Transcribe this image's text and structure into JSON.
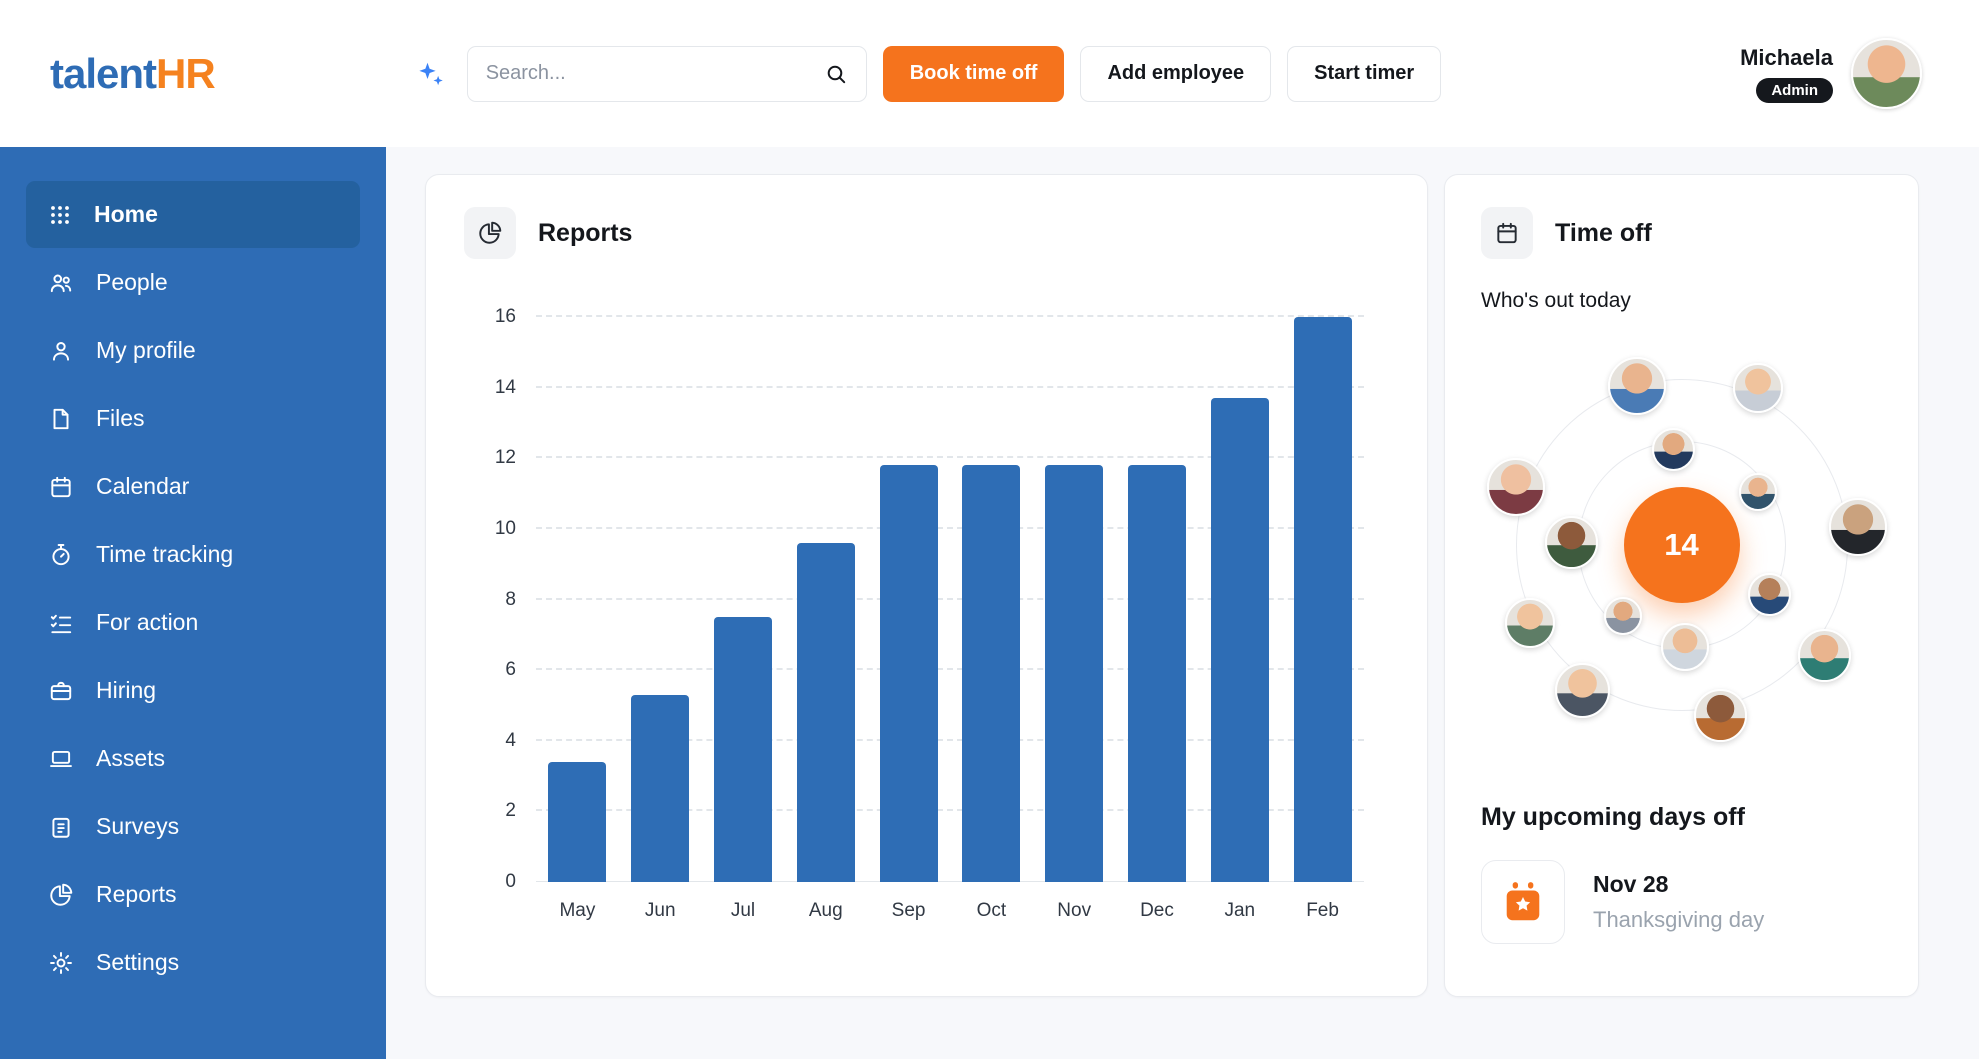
{
  "brand": {
    "logo_part1": "talent",
    "logo_part2": "HR",
    "color_blue": "#2e6cb5",
    "color_orange": "#f5731d"
  },
  "topbar": {
    "search": {
      "placeholder": "Search..."
    },
    "book_time_off_label": "Book time off",
    "add_employee_label": "Add employee",
    "start_timer_label": "Start timer",
    "user": {
      "name": "Michaela",
      "role_badge": "Admin"
    }
  },
  "sidebar": {
    "items": [
      {
        "label": "Home",
        "icon": "apps-grid-icon",
        "active": true
      },
      {
        "label": "People",
        "icon": "people-icon",
        "active": false
      },
      {
        "label": "My profile",
        "icon": "user-icon",
        "active": false
      },
      {
        "label": "Files",
        "icon": "file-icon",
        "active": false
      },
      {
        "label": "Calendar",
        "icon": "calendar-icon",
        "active": false
      },
      {
        "label": "Time tracking",
        "icon": "stopwatch-icon",
        "active": false
      },
      {
        "label": "For action",
        "icon": "checklist-icon",
        "active": false
      },
      {
        "label": "Hiring",
        "icon": "briefcase-icon",
        "active": false
      },
      {
        "label": "Assets",
        "icon": "laptop-icon",
        "active": false
      },
      {
        "label": "Surveys",
        "icon": "clipboard-icon",
        "active": false
      },
      {
        "label": "Reports",
        "icon": "pie-chart-icon",
        "active": false
      },
      {
        "label": "Settings",
        "icon": "gear-icon",
        "active": false
      }
    ]
  },
  "reports_card": {
    "title": "Reports"
  },
  "chart_data": {
    "type": "bar",
    "title": "Reports",
    "categories": [
      "May",
      "Jun",
      "Jul",
      "Aug",
      "Sep",
      "Oct",
      "Nov",
      "Dec",
      "Jan",
      "Feb"
    ],
    "values": [
      3.4,
      5.3,
      7.5,
      9.6,
      11.8,
      11.8,
      11.8,
      11.8,
      13.7,
      16
    ],
    "xlabel": "",
    "ylabel": "",
    "ylim": [
      0,
      16
    ],
    "yticks": [
      0,
      2,
      4,
      6,
      8,
      10,
      12,
      14,
      16
    ],
    "bar_color": "#2e6db5",
    "grid": "dashed-horizontal",
    "legend": "none"
  },
  "timeoff_card": {
    "title": "Time off",
    "whos_out_label": "Who's out today",
    "out_count": "14",
    "upcoming_title": "My upcoming days off",
    "upcoming": [
      {
        "date": "Nov 28",
        "label": "Thanksgiving day"
      }
    ]
  }
}
